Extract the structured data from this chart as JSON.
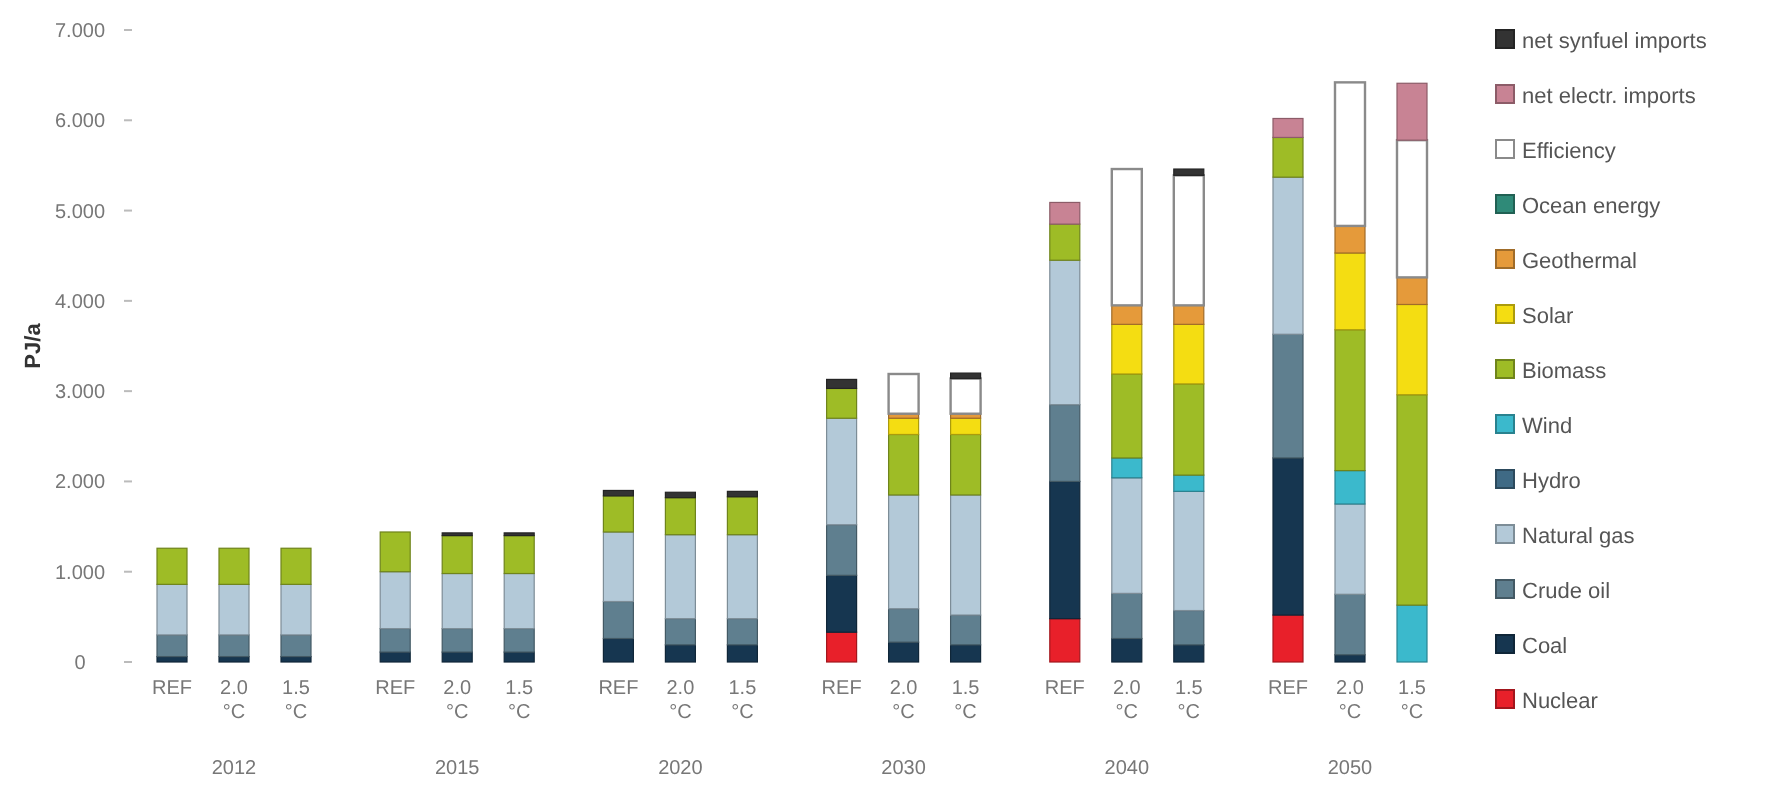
{
  "chart_data": {
    "type": "bar",
    "stacked": true,
    "ylabel": "PJ/a",
    "categories": [
      "REF",
      "2.0 °C",
      "1.5 °C",
      "REF",
      "2.0 °C",
      "1.5 °C",
      "REF",
      "2.0 °C",
      "1.5 °C",
      "REF",
      "2.0 °C",
      "1.5 °C",
      "REF",
      "2.0 °C",
      "1.5 °C",
      "REF",
      "2.0 °C",
      "1.5 °C"
    ],
    "annotations": [
      "2012",
      "2015",
      "2020",
      "2030",
      "2040",
      "2050"
    ],
    "ylim": [
      0,
      7
    ],
    "yticks": [
      0,
      {
        "value": 1,
        "label": "1.000"
      },
      {
        "value": 2,
        "label": "2.000"
      },
      {
        "value": 3,
        "label": "3.000"
      },
      {
        "value": 4,
        "label": "4.000"
      },
      {
        "value": 5,
        "label": "5.000"
      },
      {
        "value": 6,
        "label": "6.000"
      },
      {
        "value": 7,
        "label": "7.000"
      }
    ],
    "legend": "right",
    "series": [
      {
        "name": "Nuclear",
        "color": "#e8202a",
        "values": [
          null,
          null,
          null,
          null,
          null,
          null,
          null,
          null,
          null,
          0.33,
          null,
          null,
          0.48,
          null,
          null,
          0.52,
          null,
          null
        ]
      },
      {
        "name": "Coal",
        "color": "#163650",
        "values": [
          0.06,
          0.06,
          0.06,
          0.11,
          0.11,
          0.11,
          0.26,
          0.19,
          0.19,
          0.63,
          0.22,
          0.19,
          1.52,
          0.26,
          0.19,
          1.74,
          0.08,
          null
        ]
      },
      {
        "name": "Crude oil",
        "color": "#5f7f8f",
        "values": [
          0.24,
          0.24,
          0.24,
          0.26,
          0.26,
          0.26,
          0.41,
          0.29,
          0.29,
          0.56,
          0.37,
          0.33,
          0.85,
          0.5,
          0.38,
          1.37,
          0.67,
          null
        ]
      },
      {
        "name": "Natural gas",
        "color": "#b3c9d8",
        "values": [
          0.56,
          0.56,
          0.56,
          0.63,
          0.61,
          0.61,
          0.77,
          0.93,
          0.93,
          1.18,
          1.26,
          1.33,
          1.6,
          1.28,
          1.32,
          1.74,
          1.0,
          null
        ]
      },
      {
        "name": "Hydro",
        "color": "#3f6a85",
        "values": [
          null,
          null,
          null,
          null,
          null,
          null,
          null,
          null,
          null,
          null,
          null,
          null,
          null,
          null,
          null,
          null,
          null,
          null
        ]
      },
      {
        "name": "Wind",
        "color": "#3bb9cc",
        "values": [
          null,
          null,
          null,
          null,
          null,
          null,
          null,
          null,
          null,
          null,
          null,
          null,
          null,
          0.22,
          0.18,
          null,
          0.37,
          0.63
        ]
      },
      {
        "name": "Biomass",
        "color": "#9ebc26",
        "values": [
          0.4,
          0.4,
          0.4,
          0.44,
          0.42,
          0.42,
          0.4,
          0.41,
          0.42,
          0.33,
          0.67,
          0.67,
          0.4,
          0.93,
          1.01,
          0.44,
          1.56,
          2.33
        ]
      },
      {
        "name": "Solar",
        "color": "#f4dd12",
        "values": [
          null,
          null,
          null,
          null,
          null,
          null,
          null,
          null,
          null,
          null,
          0.18,
          0.18,
          null,
          0.55,
          0.66,
          null,
          0.85,
          1.0
        ]
      },
      {
        "name": "Geothermal",
        "color": "#e59a3a",
        "values": [
          null,
          null,
          null,
          null,
          null,
          null,
          null,
          null,
          null,
          null,
          0.05,
          0.05,
          null,
          0.21,
          0.21,
          null,
          0.3,
          0.3
        ]
      },
      {
        "name": "Ocean energy",
        "color": "#2f8a78",
        "values": [
          null,
          null,
          null,
          null,
          null,
          null,
          null,
          null,
          null,
          null,
          null,
          null,
          null,
          null,
          null,
          null,
          null,
          null
        ]
      },
      {
        "name": "Efficiency",
        "color": "#ffffff",
        "values": [
          null,
          null,
          null,
          null,
          null,
          null,
          null,
          null,
          null,
          null,
          0.44,
          0.39,
          null,
          1.51,
          1.44,
          null,
          1.59,
          1.52
        ]
      },
      {
        "name": "net electr. imports",
        "color": "#c88394",
        "values": [
          null,
          null,
          null,
          null,
          null,
          null,
          null,
          null,
          null,
          null,
          null,
          null,
          0.24,
          null,
          null,
          0.21,
          null,
          0.63
        ]
      },
      {
        "name": "net synfuel imports",
        "color": "#333333",
        "values": [
          null,
          null,
          null,
          null,
          0.03,
          0.03,
          0.06,
          0.06,
          0.06,
          0.1,
          null,
          0.06,
          null,
          null,
          0.07,
          null,
          null,
          null
        ]
      }
    ]
  }
}
